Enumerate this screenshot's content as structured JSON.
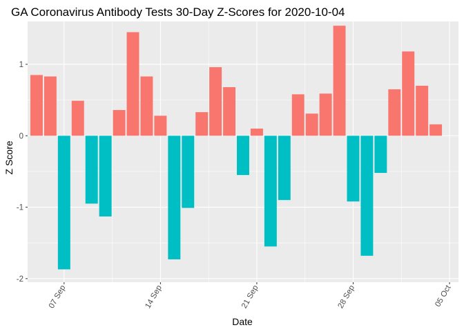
{
  "chart_data": {
    "type": "bar",
    "title": "GA Coronavirus Antibody Tests 30-Day Z-Scores for 2020-10-04",
    "xlabel": "Date",
    "ylabel": "Z Score",
    "ylim": [
      -2.05,
      1.6
    ],
    "yticks": [
      -2,
      -1,
      0,
      1
    ],
    "x_start": "2020-09-05",
    "xlim_days": [
      -0.65,
      30.65
    ],
    "xticks": [
      {
        "label": "07 Sep",
        "day": 2
      },
      {
        "label": "14 Sep",
        "day": 9
      },
      {
        "label": "21 Sep",
        "day": 16
      },
      {
        "label": "28 Sep",
        "day": 23
      },
      {
        "label": "05 Oct",
        "day": 30
      }
    ],
    "dates": [
      "2020-09-05",
      "2020-09-06",
      "2020-09-07",
      "2020-09-08",
      "2020-09-09",
      "2020-09-10",
      "2020-09-11",
      "2020-09-12",
      "2020-09-13",
      "2020-09-14",
      "2020-09-15",
      "2020-09-16",
      "2020-09-17",
      "2020-09-18",
      "2020-09-19",
      "2020-09-20",
      "2020-09-21",
      "2020-09-22",
      "2020-09-23",
      "2020-09-24",
      "2020-09-25",
      "2020-09-26",
      "2020-09-27",
      "2020-09-28",
      "2020-09-29",
      "2020-09-30",
      "2020-10-01",
      "2020-10-02",
      "2020-10-03",
      "2020-10-04"
    ],
    "values": [
      0.85,
      0.83,
      -1.87,
      0.49,
      -0.95,
      -1.13,
      0.36,
      1.45,
      0.83,
      0.28,
      -1.73,
      -1.01,
      0.33,
      0.96,
      0.68,
      -0.55,
      0.1,
      -1.55,
      -0.9,
      0.58,
      0.31,
      0.59,
      1.54,
      -0.92,
      -1.68,
      -0.52,
      0.65,
      1.18,
      0.7,
      0.16
    ],
    "colors": {
      "positive": "#F8766D",
      "negative": "#00BFC4"
    },
    "panel_background": "#EBEBEB",
    "grid": true
  }
}
